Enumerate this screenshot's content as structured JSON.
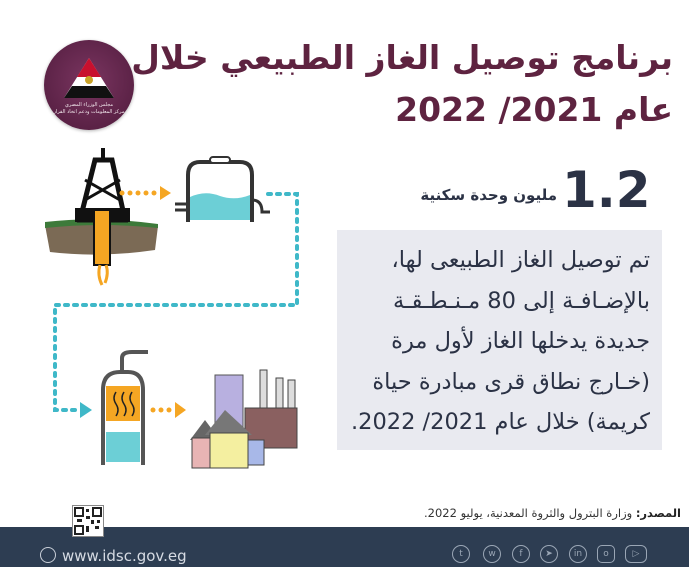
{
  "logo": {
    "text_line1": "مجلس الوزراء المصري",
    "text_line2": "مركز المعلومات ودعم اتخاذ القرار"
  },
  "title": {
    "line1": "برنامج توصيل الغاز الطبيعي خلال",
    "line2": "عام 2021/ 2022"
  },
  "stat": {
    "value": "1.2",
    "unit": "مليون وحدة سكنية"
  },
  "description": {
    "lines": [
      "تم توصيل الغاز الطبيعى لها،",
      "بالإضـافـة إلى  80 مـنـطـقـة",
      "جديدة يدخلها الغاز لأول مرة",
      "(خـارج نطاق قرى مبادرة حياة",
      "كريمة) خلال عام 2021/ 2022."
    ]
  },
  "source": {
    "label": "المصدر:",
    "text": " وزارة البترول والثروة المعدنية، يوليو 2022."
  },
  "footer": {
    "website": "www.idsc.gov.eg",
    "social_icons": [
      "youtube-icon",
      "instagram-icon",
      "linkedin-icon",
      "telegram-icon",
      "facebook-icon",
      "whatsapp-icon",
      "twitter-icon"
    ]
  },
  "colors": {
    "title": "#5e2340",
    "text": "#2b3245",
    "box": "#e9eaf0",
    "footer": "#2d3d52",
    "pipe_dots": "#3fb8c8",
    "arrow": "#f5a623"
  }
}
